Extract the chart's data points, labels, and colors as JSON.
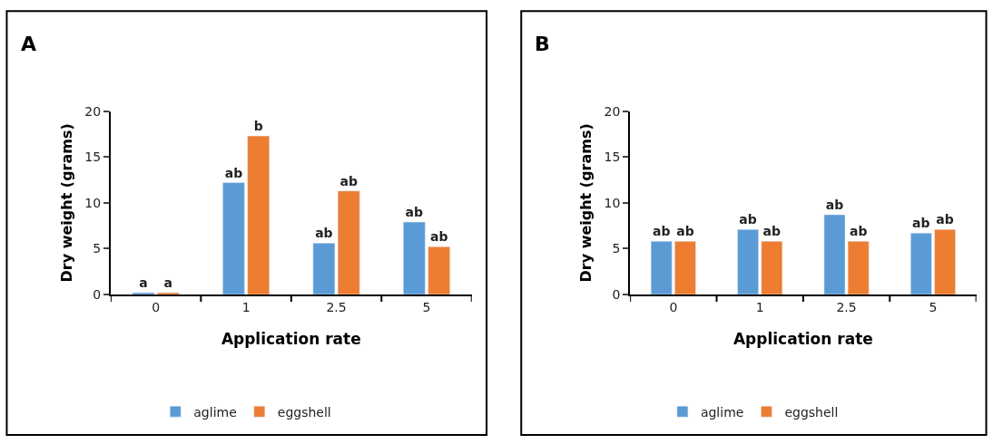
{
  "chart_data": [
    {
      "type": "bar",
      "title": "A",
      "xlabel": "Application rate",
      "ylabel": "Dry weight (grams)",
      "categories": [
        "0",
        "1",
        "2.5",
        "5"
      ],
      "ylim": [
        0,
        20
      ],
      "yticks": [
        0,
        5,
        10,
        15,
        20
      ],
      "legend": "bottom",
      "series": [
        {
          "name": "aglime",
          "color": "#5b9bd5",
          "values": [
            0.2,
            12.2,
            5.6,
            7.9
          ],
          "value_labels": [
            "a",
            "ab",
            "ab",
            "ab"
          ]
        },
        {
          "name": "eggshell",
          "color": "#ed7d31",
          "values": [
            0.2,
            17.3,
            11.3,
            5.2
          ],
          "value_labels": [
            "a",
            "b",
            "ab",
            "ab"
          ]
        }
      ]
    },
    {
      "type": "bar",
      "title": "B",
      "xlabel": "Application rate",
      "ylabel": "Dry weight (grams)",
      "categories": [
        "0",
        "1",
        "2.5",
        "5"
      ],
      "ylim": [
        0,
        20
      ],
      "yticks": [
        0,
        5,
        10,
        15,
        20
      ],
      "legend": "bottom",
      "series": [
        {
          "name": "aglime",
          "color": "#5b9bd5",
          "values": [
            5.8,
            7.1,
            8.7,
            6.7
          ],
          "value_labels": [
            "ab",
            "ab",
            "ab",
            "ab"
          ]
        },
        {
          "name": "eggshell",
          "color": "#ed7d31",
          "values": [
            5.8,
            5.8,
            5.8,
            7.1
          ],
          "value_labels": [
            "ab",
            "ab",
            "ab",
            "ab"
          ]
        }
      ]
    }
  ]
}
